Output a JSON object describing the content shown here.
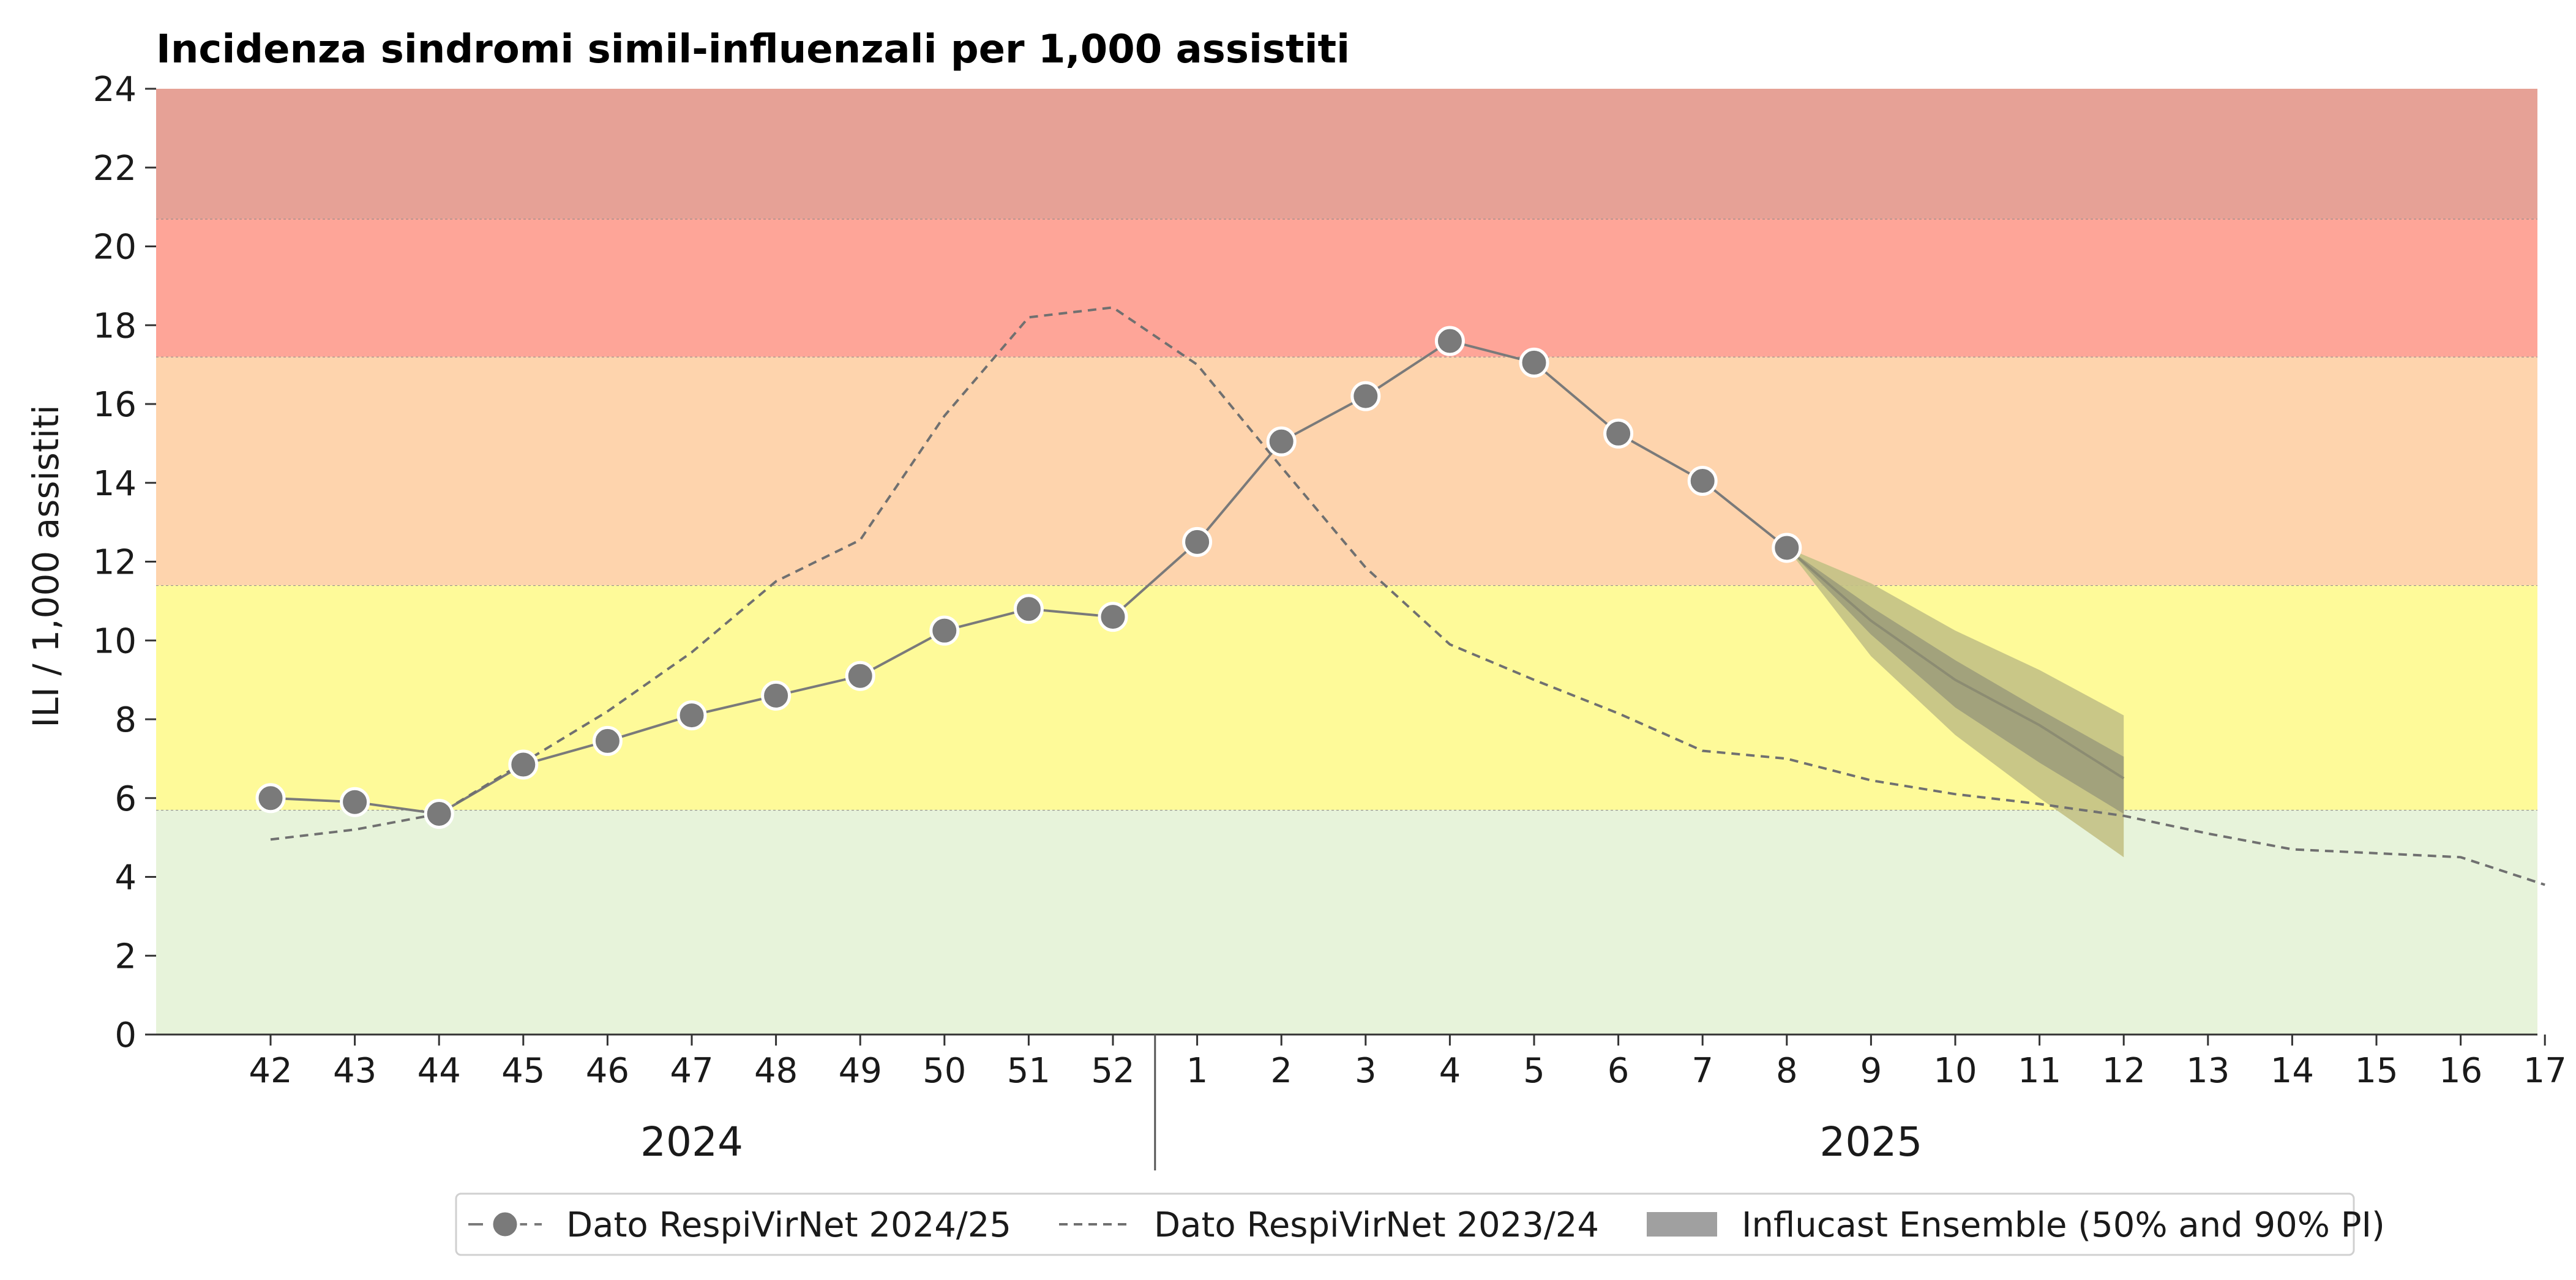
{
  "chart_data": {
    "type": "line",
    "title": "Incidenza sindromi simil-influenzali per 1,000 assistiti",
    "ylabel": "ILI / 1,000 assistiti",
    "ylim": [
      0,
      24
    ],
    "yticks": [
      "0",
      "2",
      "4",
      "6",
      "8",
      "10",
      "12",
      "14",
      "16",
      "18",
      "20",
      "22",
      "24"
    ],
    "x_ticks": [
      "42",
      "43",
      "44",
      "45",
      "46",
      "47",
      "48",
      "49",
      "50",
      "51",
      "52",
      "1",
      "2",
      "3",
      "4",
      "5",
      "6",
      "7",
      "8",
      "9",
      "10",
      "11",
      "12",
      "13",
      "14",
      "15",
      "16",
      "17"
    ],
    "year_labels": [
      "2024",
      "2025"
    ],
    "grid": false,
    "intensity_bands": [
      {
        "from": 0,
        "to": 5.7,
        "color": "#e7f3da"
      },
      {
        "from": 5.7,
        "to": 11.4,
        "color": "#fefa99"
      },
      {
        "from": 11.4,
        "to": 17.2,
        "color": "#fed4ad"
      },
      {
        "from": 17.2,
        "to": 20.7,
        "color": "#fea598"
      },
      {
        "from": 20.7,
        "to": 24,
        "color": "#e6a196"
      }
    ],
    "series": [
      {
        "name": "Dato RespiVirNet 2024/25",
        "style": "solid-markers",
        "color": "#7a7a7a",
        "x": [
          "42",
          "43",
          "44",
          "45",
          "46",
          "47",
          "48",
          "49",
          "50",
          "51",
          "52",
          "1",
          "2",
          "3",
          "4",
          "5",
          "6",
          "7",
          "8"
        ],
        "values": [
          6.0,
          5.9,
          5.6,
          6.85,
          7.45,
          8.1,
          8.6,
          9.1,
          10.25,
          10.8,
          10.6,
          12.5,
          15.05,
          16.2,
          17.6,
          17.05,
          15.25,
          14.05,
          12.35
        ]
      },
      {
        "name": "Dato RespiVirNet 2023/24",
        "style": "dashed",
        "color": "#707070",
        "x": [
          "42",
          "43",
          "44",
          "45",
          "46",
          "47",
          "48",
          "49",
          "50",
          "51",
          "52",
          "1",
          "2",
          "3",
          "4",
          "5",
          "6",
          "7",
          "8",
          "9",
          "10",
          "11",
          "12",
          "13",
          "14",
          "15",
          "16",
          "17"
        ],
        "values": [
          4.95,
          5.2,
          5.6,
          6.9,
          8.2,
          9.7,
          11.5,
          12.55,
          15.7,
          18.2,
          18.45,
          17.0,
          14.4,
          11.85,
          9.9,
          9.0,
          8.15,
          7.2,
          7.0,
          6.45,
          6.1,
          5.85,
          5.55,
          5.1,
          4.7,
          4.6,
          4.5,
          3.8
        ]
      }
    ],
    "forecast": {
      "name": "Influcast Ensemble (50% and 90% PI)",
      "x": [
        "8",
        "9",
        "10",
        "11",
        "12"
      ],
      "median": [
        12.35,
        10.5,
        9.0,
        7.85,
        6.5
      ],
      "pi50_low": [
        12.35,
        10.15,
        8.3,
        6.9,
        5.6
      ],
      "pi50_high": [
        12.35,
        10.85,
        9.5,
        8.25,
        7.05
      ],
      "pi90_low": [
        12.35,
        9.6,
        7.6,
        6.0,
        4.5
      ],
      "pi90_high": [
        12.35,
        11.45,
        10.25,
        9.25,
        8.1
      ],
      "color_outer": "#c3c185",
      "color_inner": "#9d9d7b"
    },
    "legend": [
      "Dato RespiVirNet 2024/25",
      "Dato RespiVirNet 2023/24",
      "Influcast Ensemble (50% and 90% PI)"
    ],
    "legend_position": "bottom-center"
  }
}
